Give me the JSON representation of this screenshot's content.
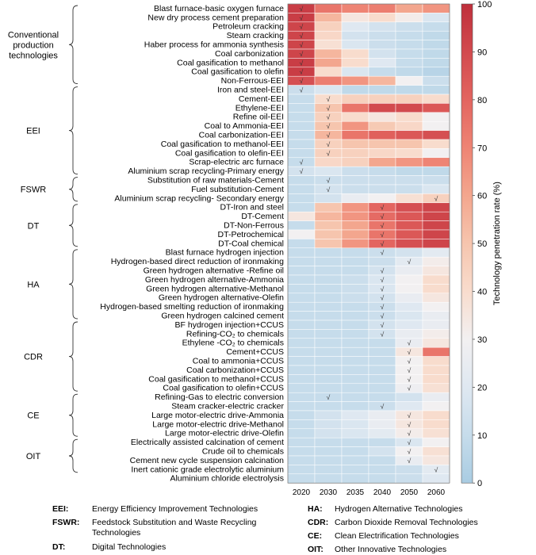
{
  "chart_data": {
    "type": "heatmap",
    "title": "",
    "xlabel": "",
    "ylabel": "",
    "x": [
      "2020",
      "2030",
      "2035",
      "2040",
      "2050",
      "2060"
    ],
    "colorbar": {
      "label": "Technology penetration rate (%)",
      "ticks": [
        "0",
        "10",
        "20",
        "30",
        "40",
        "50",
        "60",
        "70",
        "80",
        "90",
        "100"
      ],
      "range": [
        0,
        100
      ],
      "colors": [
        "#a9cce2",
        "#c6dceb",
        "#dfe8f1",
        "#f2f0f1",
        "#f8dccd",
        "#f6c5ae",
        "#f3a68e",
        "#ee8474",
        "#e36560",
        "#d24a4e",
        "#bf2f3b"
      ]
    },
    "groups": [
      {
        "label": "Conventional production technologies",
        "start": 0,
        "end": 8
      },
      {
        "label": "EEI",
        "start": 9,
        "end": 18
      },
      {
        "label": "FSWR",
        "start": 19,
        "end": 21
      },
      {
        "label": "DT",
        "start": 22,
        "end": 26
      },
      {
        "label": "HA",
        "start": 27,
        "end": 34
      },
      {
        "label": "CDR",
        "start": 35,
        "end": 42
      },
      {
        "label": "CE",
        "start": 43,
        "end": 47
      },
      {
        "label": "OIT",
        "start": 48,
        "end": 51
      }
    ],
    "rows": [
      {
        "label": "Blast furnace-basic oxygen furnace",
        "values": [
          95,
          75,
          70,
          72,
          60,
          65
        ]
      },
      {
        "label": "New dry process cement preparation",
        "values": [
          95,
          55,
          35,
          40,
          32,
          18
        ]
      },
      {
        "label": "Petroleum cracking",
        "values": [
          92,
          45,
          20,
          15,
          12,
          10
        ]
      },
      {
        "label": "Steam cracking",
        "values": [
          92,
          42,
          15,
          12,
          10,
          8
        ]
      },
      {
        "label": "Haber process for ammonia synthesis",
        "values": [
          92,
          38,
          18,
          12,
          10,
          8
        ]
      },
      {
        "label": "Coal carbonization",
        "values": [
          92,
          55,
          40,
          15,
          10,
          8
        ]
      },
      {
        "label": "Coal gasification to methanol",
        "values": [
          95,
          60,
          40,
          20,
          10,
          8
        ]
      },
      {
        "label": "Coal gasification to olefin",
        "values": [
          95,
          40,
          18,
          10,
          8,
          5
        ]
      },
      {
        "label": "Non-Ferrous-EEI",
        "values": [
          88,
          72,
          65,
          55,
          30,
          12
        ]
      },
      {
        "label": "Iron and steel-EEI",
        "values": [
          12,
          18,
          8,
          8,
          8,
          8
        ]
      },
      {
        "label": "Cement-EEI",
        "values": [
          10,
          40,
          45,
          45,
          45,
          40
        ]
      },
      {
        "label": "Ethylene-EEI",
        "values": [
          10,
          50,
          75,
          90,
          90,
          85
        ]
      },
      {
        "label": "Refine oil-EEI",
        "values": [
          10,
          45,
          40,
          35,
          40,
          30
        ]
      },
      {
        "label": "Coal to Ammonia-EEI",
        "values": [
          10,
          50,
          65,
          48,
          42,
          30
        ]
      },
      {
        "label": "Coal carbonization-EEI",
        "values": [
          10,
          55,
          75,
          82,
          85,
          88
        ]
      },
      {
        "label": "Coal gasification to methanol-EEI",
        "values": [
          10,
          45,
          50,
          50,
          50,
          40
        ]
      },
      {
        "label": "Coal gasification to olefin-EEI",
        "values": [
          10,
          45,
          45,
          42,
          40,
          30
        ]
      },
      {
        "label": "Scrap-electric arc furnace",
        "values": [
          10,
          42,
          45,
          60,
          65,
          70
        ]
      },
      {
        "label": "Aluminium scrap recycling-Primary energy",
        "values": [
          15,
          18,
          12,
          10,
          8,
          8
        ]
      },
      {
        "label": "Substitution of raw materials-Cement",
        "values": [
          10,
          12,
          12,
          12,
          12,
          12
        ]
      },
      {
        "label": "Fuel substitution-Cement",
        "values": [
          10,
          15,
          12,
          12,
          12,
          18
        ]
      },
      {
        "label": "Aluminium scrap recycling- Secondary energy",
        "values": [
          10,
          15,
          25,
          30,
          38,
          45
        ]
      },
      {
        "label": "DT-Iron and steel",
        "values": [
          10,
          50,
          65,
          80,
          88,
          92
        ]
      },
      {
        "label": "DT-Cement",
        "values": [
          35,
          55,
          65,
          78,
          85,
          92
        ]
      },
      {
        "label": "DT-Non-Ferrous",
        "values": [
          10,
          50,
          60,
          75,
          85,
          92
        ]
      },
      {
        "label": "DT-Petrochemical",
        "values": [
          30,
          50,
          60,
          75,
          85,
          92
        ]
      },
      {
        "label": "DT-Coal chemical",
        "values": [
          10,
          50,
          65,
          80,
          88,
          92
        ]
      },
      {
        "label": "Blast furnace hydrogen injection",
        "values": [
          10,
          10,
          10,
          12,
          15,
          22
        ]
      },
      {
        "label": "Hydrogen-based direct reduction of ironmaking",
        "values": [
          10,
          10,
          10,
          12,
          22,
          32
        ]
      },
      {
        "label": "Green hydrogen alternative -Refine oil",
        "values": [
          10,
          10,
          10,
          15,
          25,
          35
        ]
      },
      {
        "label": "Green hydrogen alternative-Ammonia",
        "values": [
          10,
          10,
          12,
          18,
          30,
          40
        ]
      },
      {
        "label": "Green hydrogen alternative-Methanol",
        "values": [
          10,
          10,
          12,
          18,
          30,
          40
        ]
      },
      {
        "label": "Green hydrogen alternative-Olefin",
        "values": [
          10,
          10,
          12,
          15,
          25,
          35
        ]
      },
      {
        "label": "Hydrogen-based smelting reduction of ironmaking",
        "values": [
          10,
          10,
          10,
          12,
          20,
          30
        ]
      },
      {
        "label": "Green hydrogen calcined cement",
        "values": [
          10,
          10,
          10,
          12,
          18,
          25
        ]
      },
      {
        "label": "BF hydrogen injection+CCUS",
        "values": [
          10,
          10,
          10,
          15,
          20,
          25
        ]
      },
      {
        "label": "Refining-CO₂ to chemicals",
        "values": [
          10,
          10,
          10,
          15,
          25,
          32
        ]
      },
      {
        "label": "Ethylene -CO₂ to chemicals",
        "values": [
          10,
          10,
          10,
          10,
          25,
          35
        ]
      },
      {
        "label": "Cement+CCUS",
        "values": [
          10,
          10,
          10,
          10,
          35,
          75
        ]
      },
      {
        "label": "Coal to ammonia+CCUS",
        "values": [
          10,
          10,
          10,
          10,
          30,
          40
        ]
      },
      {
        "label": "Coal carbonization+CCUS",
        "values": [
          10,
          10,
          10,
          10,
          30,
          40
        ]
      },
      {
        "label": "Coal gasification to methanol+CCUS",
        "values": [
          10,
          10,
          10,
          10,
          30,
          40
        ]
      },
      {
        "label": "Coal gasification to olefin+CCUS",
        "values": [
          10,
          10,
          10,
          10,
          28,
          38
        ]
      },
      {
        "label": "Refining-Gas to electric conversion",
        "values": [
          10,
          10,
          10,
          10,
          15,
          25
        ]
      },
      {
        "label": "Steam cracker-electric cracker",
        "values": [
          10,
          10,
          10,
          12,
          20,
          30
        ]
      },
      {
        "label": "Large motor-electric drive-Ammonia",
        "values": [
          10,
          15,
          20,
          25,
          35,
          40
        ]
      },
      {
        "label": "Large motor-electric drive-Methanol",
        "values": [
          10,
          15,
          18,
          25,
          35,
          40
        ]
      },
      {
        "label": "Large motor-electric drive-Olefin",
        "values": [
          10,
          15,
          18,
          22,
          32,
          38
        ]
      },
      {
        "label": "Electrically assisted calcination of cement",
        "values": [
          10,
          10,
          10,
          10,
          18,
          30
        ]
      },
      {
        "label": "Crude oil to chemicals",
        "values": [
          10,
          10,
          10,
          15,
          30,
          38
        ]
      },
      {
        "label": "Cement new cycle suspension calcination",
        "values": [
          10,
          10,
          10,
          10,
          25,
          35
        ]
      },
      {
        "label": "Inert cationic grade electrolytic aluminium",
        "values": [
          10,
          10,
          10,
          10,
          12,
          22
        ]
      },
      {
        "label": "Aluminium chloride electrolysis",
        "values": [
          10,
          10,
          10,
          10,
          12,
          20
        ]
      }
    ],
    "checks": [
      [
        0,
        0
      ],
      [
        1,
        0
      ],
      [
        2,
        0
      ],
      [
        3,
        0
      ],
      [
        4,
        0
      ],
      [
        5,
        0
      ],
      [
        6,
        0
      ],
      [
        7,
        0
      ],
      [
        8,
        0
      ],
      [
        9,
        0
      ],
      [
        10,
        1
      ],
      [
        11,
        1
      ],
      [
        12,
        1
      ],
      [
        13,
        1
      ],
      [
        14,
        1
      ],
      [
        15,
        1
      ],
      [
        16,
        1
      ],
      [
        17,
        0
      ],
      [
        18,
        0
      ],
      [
        19,
        1
      ],
      [
        20,
        1
      ],
      [
        21,
        5
      ],
      [
        22,
        3
      ],
      [
        23,
        3
      ],
      [
        24,
        3
      ],
      [
        25,
        3
      ],
      [
        26,
        3
      ],
      [
        27,
        3
      ],
      [
        28,
        4
      ],
      [
        29,
        3
      ],
      [
        30,
        3
      ],
      [
        31,
        3
      ],
      [
        32,
        3
      ],
      [
        33,
        3
      ],
      [
        34,
        3
      ],
      [
        35,
        3
      ],
      [
        36,
        3
      ],
      [
        37,
        4
      ],
      [
        38,
        4
      ],
      [
        39,
        4
      ],
      [
        40,
        4
      ],
      [
        41,
        4
      ],
      [
        42,
        4
      ],
      [
        43,
        1
      ],
      [
        44,
        3
      ],
      [
        45,
        4
      ],
      [
        46,
        4
      ],
      [
        47,
        4
      ],
      [
        48,
        4
      ],
      [
        49,
        4
      ],
      [
        50,
        4
      ],
      [
        51,
        5
      ]
    ],
    "check_symbol": "√"
  },
  "legend": [
    {
      "abbr": "EEI:",
      "text": "Energy Efficiency Improvement Technologies"
    },
    {
      "abbr": "FSWR:",
      "text": "Feedstock Substitution and Waste Recycling Technologies"
    },
    {
      "abbr": "DT:",
      "text": "Digital Technologies"
    },
    {
      "abbr": "HA:",
      "text": "Hydrogen Alternative Technologies"
    },
    {
      "abbr": "CDR:",
      "text": "Carbon Dioxide Removal Technologies"
    },
    {
      "abbr": "CE:",
      "text": "Clean Electrification Technologies"
    },
    {
      "abbr": "OIT:",
      "text": "Other Innovative Technologies"
    }
  ]
}
